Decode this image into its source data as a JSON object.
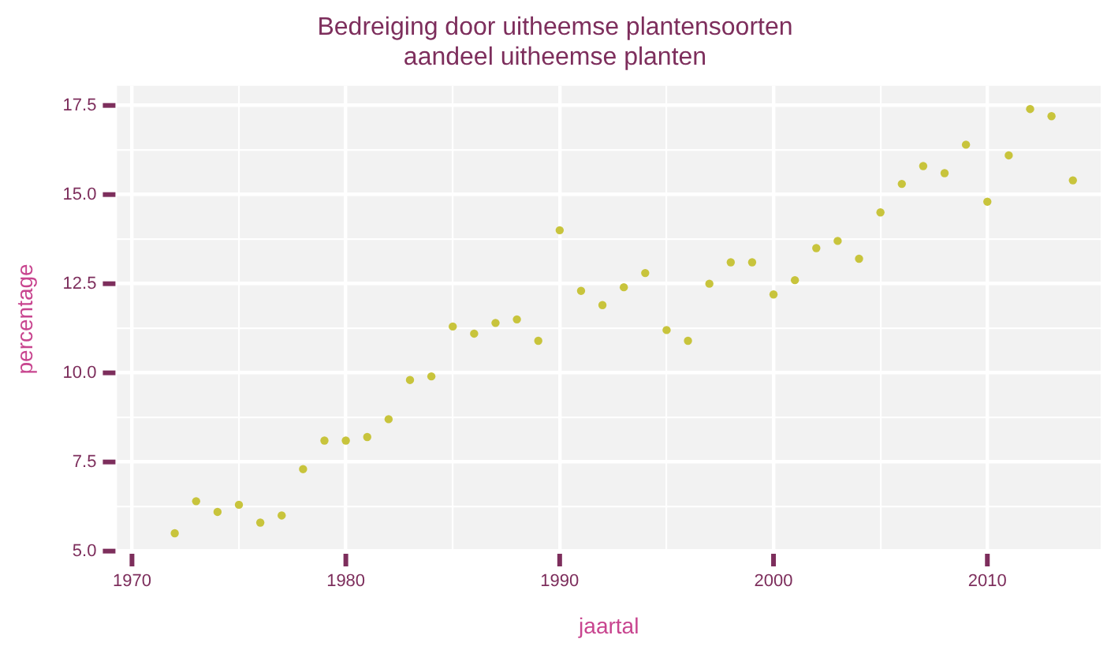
{
  "chart_data": {
    "type": "scatter",
    "title": "Bedreiging door uitheemse plantensoorten",
    "subtitle": "aandeel uitheemse planten",
    "xlabel": "jaartal",
    "ylabel": "percentage",
    "x": [
      1972,
      1973,
      1974,
      1975,
      1976,
      1977,
      1978,
      1979,
      1980,
      1981,
      1982,
      1983,
      1984,
      1985,
      1986,
      1987,
      1988,
      1989,
      1990,
      1991,
      1992,
      1993,
      1994,
      1995,
      1996,
      1997,
      1998,
      1999,
      2000,
      2001,
      2002,
      2003,
      2004,
      2005,
      2006,
      2007,
      2008,
      2009,
      2010,
      2011,
      2012,
      2013,
      2014
    ],
    "series": [
      {
        "color": "#c8c43c",
        "values": [
          5.5,
          6.4,
          6.1,
          6.3,
          5.8,
          6.0,
          7.3,
          8.1,
          8.1,
          8.2,
          8.7,
          9.8,
          9.9,
          11.3,
          11.1,
          11.4,
          11.5,
          10.9,
          14.0,
          12.3,
          11.9,
          12.4,
          12.8,
          11.2,
          10.9,
          12.5,
          13.1,
          13.1,
          12.2,
          12.6,
          13.5,
          13.7,
          13.2,
          14.5,
          15.3,
          15.8,
          15.6,
          16.4,
          14.8,
          16.1,
          17.4,
          17.2,
          15.4
        ]
      }
    ],
    "xlim": [
      1969.3,
      2015.3
    ],
    "ylim": [
      4.97,
      18.05
    ],
    "xticks": [
      1970,
      {
        "value": 1975,
        "label": null
      },
      1980,
      {
        "value": 1985,
        "label": null
      },
      1990,
      {
        "value": 1995,
        "label": null
      },
      2000,
      {
        "value": 2005,
        "label": null
      },
      2010
    ],
    "yticks": [
      {
        "value": 5,
        "label": "5.0"
      },
      {
        "value": 6.25,
        "label": null
      },
      {
        "value": 7.5,
        "label": "7.5"
      },
      {
        "value": 8.75,
        "label": null
      },
      {
        "value": 10,
        "label": "10.0"
      },
      {
        "value": 11.25,
        "label": null
      },
      {
        "value": 12.5,
        "label": "12.5"
      },
      {
        "value": 13.75,
        "label": null
      },
      {
        "value": 15,
        "label": "15.0"
      },
      {
        "value": 16.25,
        "label": null
      },
      {
        "value": 17.5,
        "label": "17.5"
      }
    ],
    "grid": true,
    "legend": false,
    "marker": "circle"
  }
}
